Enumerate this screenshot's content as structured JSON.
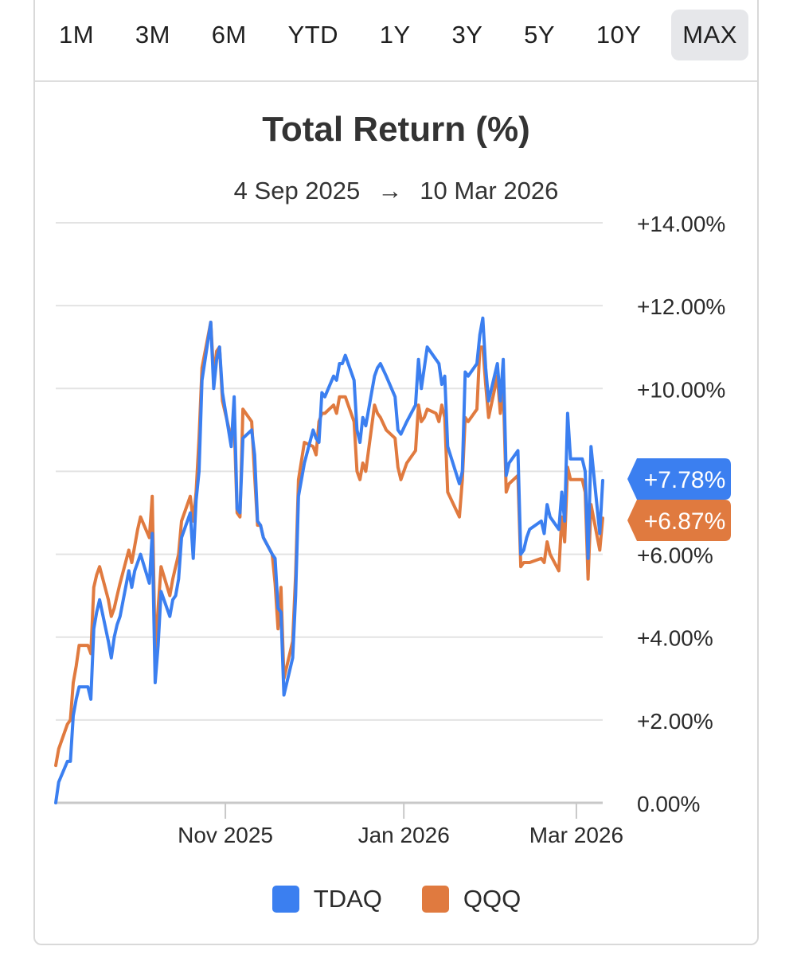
{
  "range_selector": {
    "options": [
      "1M",
      "3M",
      "6M",
      "YTD",
      "1Y",
      "3Y",
      "5Y",
      "10Y",
      "MAX"
    ],
    "selected": "MAX"
  },
  "title": "Total Return (%)",
  "date_range": {
    "start": "4 Sep 2025",
    "arrow": "→",
    "end": "10 Mar 2026"
  },
  "colors": {
    "TDAQ": "#3b7ff0",
    "QQQ": "#e07a3f",
    "grid": "#e3e3e3",
    "axis": "#c8c8c8"
  },
  "legend": [
    {
      "name": "TDAQ",
      "color": "#3b7ff0"
    },
    {
      "name": "QQQ",
      "color": "#e07a3f"
    }
  ],
  "chart_data": {
    "type": "line",
    "title": "Total Return (%)",
    "x_label": "",
    "y_label": "",
    "x_range": [
      "2025-09-04",
      "2026-03-10"
    ],
    "ylim": [
      0,
      14
    ],
    "y_ticks": [
      0,
      2,
      4,
      6,
      8,
      10,
      12,
      14
    ],
    "y_tick_labels": [
      "0.00%",
      "+2.00%",
      "+4.00%",
      "+6.00%",
      "+8.00%",
      "+10.00%",
      "+12.00%",
      "+14.00%"
    ],
    "x_ticks": [
      {
        "date": "2025-11-01",
        "label": "Nov 2025"
      },
      {
        "date": "2026-01-01",
        "label": "Jan 2026"
      },
      {
        "date": "2026-03-01",
        "label": "Mar 2026"
      }
    ],
    "grid": true,
    "legend_position": "bottom",
    "end_labels": [
      {
        "series": "TDAQ",
        "label": "+7.78%"
      },
      {
        "series": "QQQ",
        "label": "+6.87%"
      }
    ],
    "series": [
      {
        "name": "TDAQ",
        "color": "#3b7ff0",
        "x": [
          "2025-09-04",
          "2025-09-05",
          "2025-09-08",
          "2025-09-09",
          "2025-09-10",
          "2025-09-11",
          "2025-09-12",
          "2025-09-15",
          "2025-09-16",
          "2025-09-17",
          "2025-09-18",
          "2025-09-19",
          "2025-09-22",
          "2025-09-23",
          "2025-09-24",
          "2025-09-25",
          "2025-09-26",
          "2025-09-29",
          "2025-09-30",
          "2025-10-01",
          "2025-10-02",
          "2025-10-03",
          "2025-10-06",
          "2025-10-07",
          "2025-10-08",
          "2025-10-09",
          "2025-10-10",
          "2025-10-13",
          "2025-10-14",
          "2025-10-15",
          "2025-10-16",
          "2025-10-17",
          "2025-10-20",
          "2025-10-21",
          "2025-10-22",
          "2025-10-23",
          "2025-10-24",
          "2025-10-27",
          "2025-10-28",
          "2025-10-29",
          "2025-10-30",
          "2025-10-31",
          "2025-11-03",
          "2025-11-04",
          "2025-11-05",
          "2025-11-06",
          "2025-11-07",
          "2025-11-10",
          "2025-11-11",
          "2025-11-12",
          "2025-11-13",
          "2025-11-14",
          "2025-11-17",
          "2025-11-18",
          "2025-11-19",
          "2025-11-20",
          "2025-11-21",
          "2025-11-24",
          "2025-11-25",
          "2025-11-26",
          "2025-11-28",
          "2025-12-01",
          "2025-12-02",
          "2025-12-03",
          "2025-12-04",
          "2025-12-05",
          "2025-12-08",
          "2025-12-09",
          "2025-12-10",
          "2025-12-11",
          "2025-12-12",
          "2025-12-15",
          "2025-12-16",
          "2025-12-17",
          "2025-12-18",
          "2025-12-19",
          "2025-12-22",
          "2025-12-23",
          "2025-12-24",
          "2025-12-26",
          "2025-12-29",
          "2025-12-30",
          "2025-12-31",
          "2026-01-02",
          "2026-01-05",
          "2026-01-06",
          "2026-01-07",
          "2026-01-08",
          "2026-01-09",
          "2026-01-12",
          "2026-01-13",
          "2026-01-14",
          "2026-01-15",
          "2026-01-16",
          "2026-01-20",
          "2026-01-21",
          "2026-01-22",
          "2026-01-23",
          "2026-01-26",
          "2026-01-27",
          "2026-01-28",
          "2026-01-29",
          "2026-01-30",
          "2026-02-02",
          "2026-02-03",
          "2026-02-04",
          "2026-02-05",
          "2026-02-06",
          "2026-02-09",
          "2026-02-10",
          "2026-02-11",
          "2026-02-12",
          "2026-02-13",
          "2026-02-17",
          "2026-02-18",
          "2026-02-19",
          "2026-02-20",
          "2026-02-23",
          "2026-02-24",
          "2026-02-25",
          "2026-02-26",
          "2026-02-27",
          "2026-03-02",
          "2026-03-03",
          "2026-03-04",
          "2026-03-05",
          "2026-03-06",
          "2026-03-09",
          "2026-03-10"
        ],
        "values": [
          0.0,
          0.5,
          1.0,
          1.0,
          2.1,
          2.5,
          2.8,
          2.8,
          2.5,
          4.2,
          4.6,
          4.9,
          3.9,
          3.5,
          4.0,
          4.3,
          4.5,
          5.6,
          5.2,
          5.6,
          5.8,
          6.0,
          5.3,
          6.5,
          2.9,
          3.8,
          5.1,
          4.5,
          4.9,
          5.0,
          5.4,
          6.4,
          7.0,
          5.9,
          7.3,
          8.0,
          10.2,
          11.6,
          10.0,
          10.7,
          11.0,
          9.9,
          8.6,
          9.8,
          7.1,
          7.0,
          8.8,
          9.0,
          8.4,
          6.8,
          6.7,
          6.4,
          6.0,
          5.9,
          4.7,
          4.6,
          2.6,
          3.5,
          5.0,
          7.4,
          8.2,
          9.0,
          8.8,
          8.7,
          9.9,
          9.8,
          10.3,
          10.2,
          10.6,
          10.6,
          10.8,
          10.2,
          9.0,
          8.7,
          9.3,
          9.1,
          10.3,
          10.5,
          10.6,
          10.3,
          9.8,
          9.0,
          8.9,
          9.2,
          9.6,
          10.7,
          10.0,
          10.5,
          11.0,
          10.7,
          10.6,
          10.1,
          10.3,
          8.6,
          7.7,
          8.0,
          10.4,
          10.3,
          10.6,
          11.3,
          11.7,
          10.5,
          9.7,
          10.6,
          9.7,
          10.7,
          7.9,
          8.2,
          8.5,
          6.0,
          6.1,
          6.4,
          6.6,
          6.8,
          6.5,
          7.2,
          6.9,
          6.6,
          7.5,
          6.8,
          9.4,
          8.3,
          8.3,
          8.3,
          8.0,
          5.9,
          8.6,
          6.5,
          7.78
        ]
      },
      {
        "name": "QQQ",
        "color": "#e07a3f",
        "x": [
          "2025-09-04",
          "2025-09-05",
          "2025-09-08",
          "2025-09-09",
          "2025-09-10",
          "2025-09-11",
          "2025-09-12",
          "2025-09-15",
          "2025-09-16",
          "2025-09-17",
          "2025-09-18",
          "2025-09-19",
          "2025-09-22",
          "2025-09-23",
          "2025-09-24",
          "2025-09-25",
          "2025-09-26",
          "2025-09-29",
          "2025-09-30",
          "2025-10-01",
          "2025-10-02",
          "2025-10-03",
          "2025-10-06",
          "2025-10-07",
          "2025-10-08",
          "2025-10-09",
          "2025-10-10",
          "2025-10-13",
          "2025-10-14",
          "2025-10-15",
          "2025-10-16",
          "2025-10-17",
          "2025-10-20",
          "2025-10-21",
          "2025-10-22",
          "2025-10-23",
          "2025-10-24",
          "2025-10-27",
          "2025-10-28",
          "2025-10-29",
          "2025-10-30",
          "2025-10-31",
          "2025-11-03",
          "2025-11-04",
          "2025-11-05",
          "2025-11-06",
          "2025-11-07",
          "2025-11-10",
          "2025-11-11",
          "2025-11-12",
          "2025-11-13",
          "2025-11-14",
          "2025-11-17",
          "2025-11-18",
          "2025-11-19",
          "2025-11-20",
          "2025-11-21",
          "2025-11-24",
          "2025-11-25",
          "2025-11-26",
          "2025-11-28",
          "2025-12-01",
          "2025-12-02",
          "2025-12-03",
          "2025-12-04",
          "2025-12-05",
          "2025-12-08",
          "2025-12-09",
          "2025-12-10",
          "2025-12-11",
          "2025-12-12",
          "2025-12-15",
          "2025-12-16",
          "2025-12-17",
          "2025-12-18",
          "2025-12-19",
          "2025-12-22",
          "2025-12-23",
          "2025-12-24",
          "2025-12-26",
          "2025-12-29",
          "2025-12-30",
          "2025-12-31",
          "2026-01-02",
          "2026-01-05",
          "2026-01-06",
          "2026-01-07",
          "2026-01-08",
          "2026-01-09",
          "2026-01-12",
          "2026-01-13",
          "2026-01-14",
          "2026-01-15",
          "2026-01-16",
          "2026-01-20",
          "2026-01-21",
          "2026-01-22",
          "2026-01-23",
          "2026-01-26",
          "2026-01-27",
          "2026-01-28",
          "2026-01-29",
          "2026-01-30",
          "2026-02-02",
          "2026-02-03",
          "2026-02-04",
          "2026-02-05",
          "2026-02-06",
          "2026-02-09",
          "2026-02-10",
          "2026-02-11",
          "2026-02-12",
          "2026-02-13",
          "2026-02-17",
          "2026-02-18",
          "2026-02-19",
          "2026-02-20",
          "2026-02-23",
          "2026-02-24",
          "2026-02-25",
          "2026-02-26",
          "2026-02-27",
          "2026-03-02",
          "2026-03-03",
          "2026-03-04",
          "2026-03-05",
          "2026-03-06",
          "2026-03-09",
          "2026-03-10"
        ],
        "values": [
          0.9,
          1.3,
          1.9,
          2.0,
          2.9,
          3.3,
          3.8,
          3.8,
          3.6,
          5.2,
          5.5,
          5.7,
          4.9,
          4.5,
          4.7,
          5.0,
          5.3,
          6.1,
          5.8,
          6.2,
          6.6,
          6.9,
          6.4,
          7.4,
          3.6,
          4.7,
          5.7,
          5.0,
          5.4,
          5.7,
          6.0,
          6.8,
          7.4,
          6.8,
          7.5,
          8.8,
          10.5,
          11.6,
          10.3,
          10.9,
          11.0,
          9.7,
          8.8,
          9.2,
          7.0,
          6.9,
          9.5,
          9.2,
          7.9,
          6.7,
          6.7,
          6.4,
          6.0,
          5.3,
          4.2,
          5.2,
          3.0,
          3.9,
          5.5,
          7.8,
          8.7,
          8.6,
          8.4,
          9.2,
          9.4,
          9.4,
          9.6,
          9.4,
          9.8,
          9.8,
          9.8,
          9.2,
          8.0,
          7.8,
          8.2,
          8.0,
          9.6,
          9.4,
          9.3,
          9.0,
          8.8,
          8.1,
          7.8,
          8.2,
          8.5,
          9.6,
          9.2,
          9.3,
          9.5,
          9.4,
          9.2,
          9.6,
          9.3,
          7.5,
          6.9,
          7.8,
          9.3,
          9.2,
          9.5,
          11.0,
          11.0,
          10.1,
          9.3,
          10.3,
          9.4,
          10.0,
          7.5,
          7.7,
          7.9,
          5.7,
          5.8,
          5.8,
          5.8,
          5.9,
          5.8,
          6.3,
          6.0,
          5.6,
          6.9,
          6.3,
          8.1,
          7.8,
          7.8,
          7.8,
          7.5,
          5.4,
          7.2,
          6.1,
          6.87
        ]
      }
    ]
  }
}
